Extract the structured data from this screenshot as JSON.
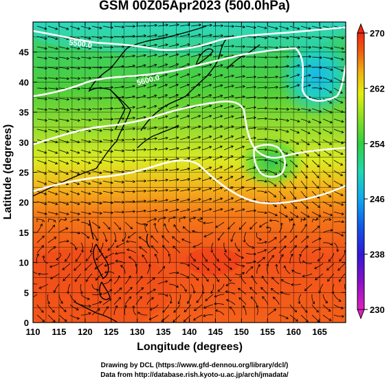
{
  "title": "GSM 00Z05Apr2023 (500.0hPa)",
  "x_axis": {
    "label": "Longitude (degrees)",
    "ticks": [
      110,
      115,
      120,
      125,
      130,
      135,
      140,
      145,
      150,
      155,
      160,
      165
    ],
    "range": [
      110,
      170
    ]
  },
  "y_axis": {
    "label": "Latitude  (degrees)",
    "ticks": [
      0,
      5,
      10,
      15,
      20,
      25,
      30,
      35,
      40,
      45
    ],
    "range": [
      0,
      50
    ]
  },
  "colorbar": {
    "ticks": [
      230,
      238,
      246,
      254,
      262,
      270
    ],
    "range": [
      230,
      270
    ],
    "colors": [
      "#e020c0",
      "#6010d0",
      "#1030e0",
      "#10a0f0",
      "#20e0c0",
      "#30d040",
      "#70e020",
      "#d0f010",
      "#f0d010",
      "#f08010",
      "#f03010"
    ]
  },
  "contour_labels": [
    "5500.0",
    "5600.0"
  ],
  "credits": {
    "line1": "Drawing by DCL (https://www.gfd-dennou.org/library/dcl/)",
    "line2": "Data from http://database.rish.kyoto-u.ac.jp/arch/jmadata/"
  }
}
